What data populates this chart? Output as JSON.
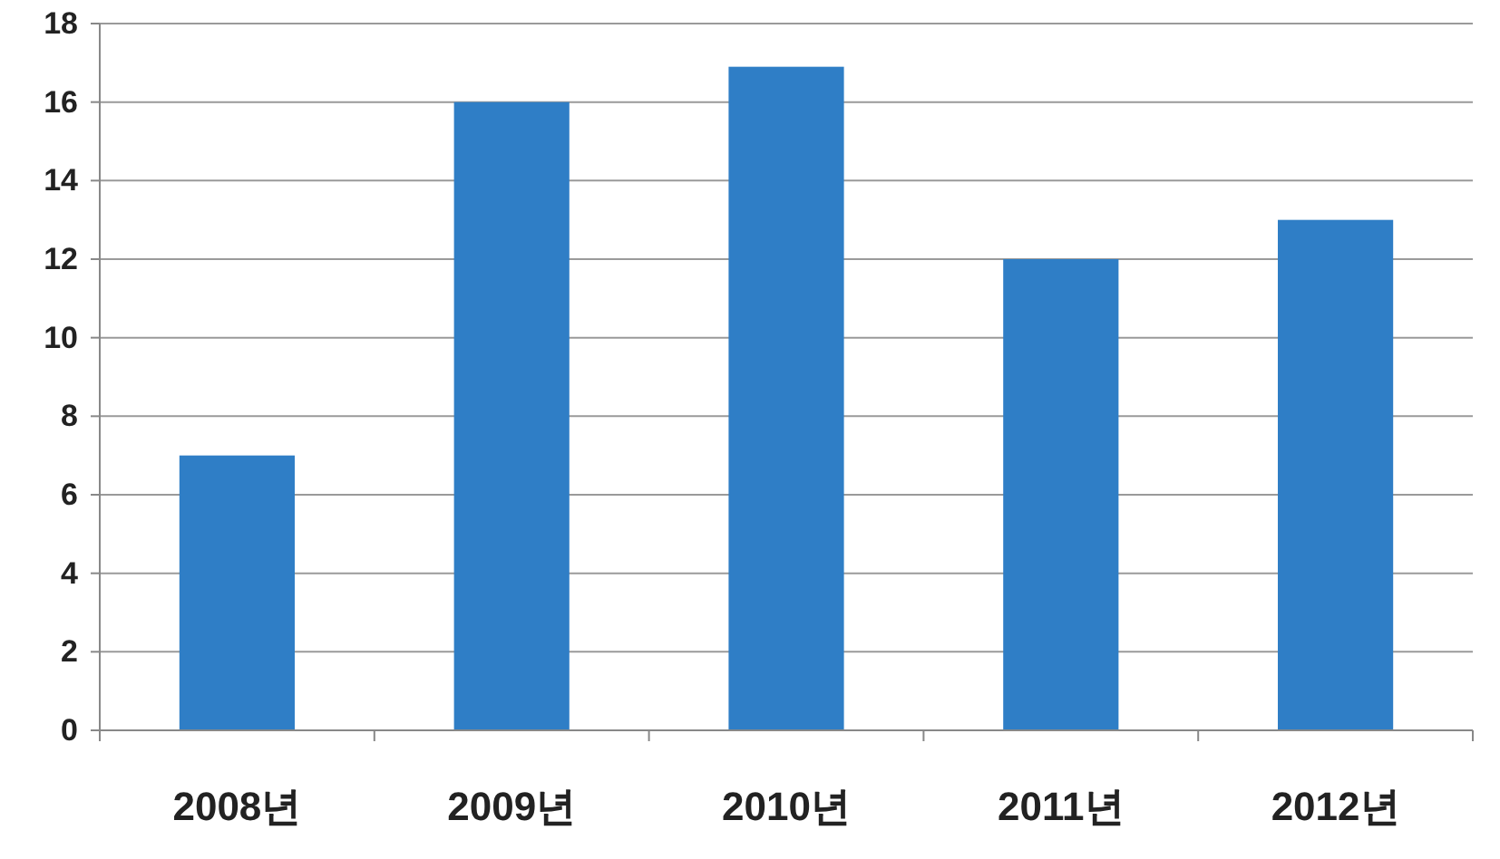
{
  "chart_data": {
    "type": "bar",
    "categories": [
      "2008년",
      "2009년",
      "2010년",
      "2011년",
      "2012년"
    ],
    "values": [
      7,
      16,
      16.9,
      12,
      13
    ],
    "color": "#2f7ec6",
    "ylim": [
      0,
      18
    ],
    "yticks": [
      0,
      2,
      4,
      6,
      8,
      10,
      12,
      14,
      16,
      18
    ],
    "grid": "y"
  }
}
